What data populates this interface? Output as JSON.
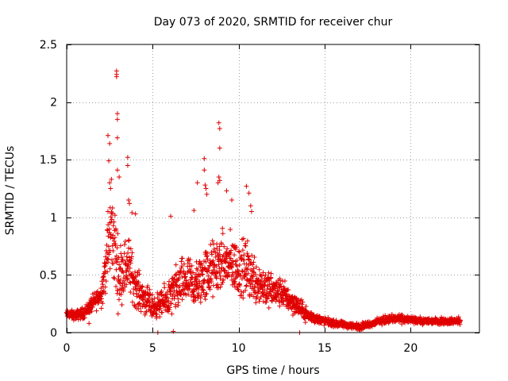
{
  "chart_data": {
    "type": "scatter",
    "title": "Day 073 of 2020, SRMTID for receiver chur",
    "xlabel": "GPS time / hours",
    "ylabel": "SRMTID / TECUs",
    "xlim": [
      0,
      24
    ],
    "ylim": [
      0,
      2.5
    ],
    "x_ticks": [
      0,
      5,
      10,
      15,
      20
    ],
    "y_ticks": [
      0,
      0.5,
      1,
      1.5,
      2,
      2.5
    ],
    "x_tick_labels": [
      "0",
      "5",
      "10",
      "15",
      "20"
    ],
    "y_tick_labels": [
      "0",
      "0.5",
      "1",
      "1.5",
      "2",
      "2.5"
    ],
    "grid": true,
    "marker": "+",
    "series_color": "#e00000",
    "data_range_x": [
      0,
      22.9
    ],
    "envelope": {
      "x": [
        0,
        0.5,
        1,
        1.5,
        2,
        2.3,
        2.6,
        2.8,
        3.0,
        3.3,
        3.6,
        4,
        4.5,
        5,
        5.5,
        6,
        6.5,
        7,
        7.5,
        8,
        8.5,
        9,
        9.5,
        10,
        10.5,
        11,
        11.5,
        12,
        12.5,
        13,
        13.5,
        14,
        14.5,
        15,
        15.5,
        16,
        16.5,
        17,
        17.5,
        18,
        18.5,
        19,
        19.5,
        20,
        20.5,
        21,
        21.5,
        22,
        22.9
      ],
      "center": [
        0.16,
        0.15,
        0.17,
        0.25,
        0.33,
        0.6,
        0.9,
        0.75,
        0.5,
        0.55,
        0.6,
        0.4,
        0.3,
        0.22,
        0.25,
        0.3,
        0.4,
        0.45,
        0.4,
        0.5,
        0.55,
        0.6,
        0.6,
        0.55,
        0.55,
        0.45,
        0.4,
        0.35,
        0.35,
        0.28,
        0.22,
        0.15,
        0.12,
        0.1,
        0.08,
        0.07,
        0.06,
        0.05,
        0.07,
        0.09,
        0.11,
        0.12,
        0.12,
        0.11,
        0.1,
        0.1,
        0.1,
        0.1,
        0.1
      ],
      "spread": [
        0.05,
        0.06,
        0.07,
        0.1,
        0.15,
        0.35,
        0.5,
        0.55,
        0.4,
        0.35,
        0.35,
        0.25,
        0.2,
        0.15,
        0.15,
        0.25,
        0.3,
        0.3,
        0.3,
        0.35,
        0.35,
        0.35,
        0.35,
        0.35,
        0.35,
        0.3,
        0.25,
        0.2,
        0.18,
        0.15,
        0.12,
        0.08,
        0.06,
        0.05,
        0.04,
        0.04,
        0.04,
        0.04,
        0.04,
        0.04,
        0.05,
        0.05,
        0.05,
        0.04,
        0.04,
        0.04,
        0.04,
        0.04,
        0.04
      ]
    },
    "points": [
      [
        2.9,
        2.27
      ],
      [
        2.9,
        2.24
      ],
      [
        2.9,
        2.22
      ],
      [
        2.95,
        1.9
      ],
      [
        2.95,
        1.85
      ],
      [
        2.95,
        1.69
      ],
      [
        2.4,
        1.71
      ],
      [
        2.5,
        1.64
      ],
      [
        2.45,
        1.49
      ],
      [
        2.5,
        1.3
      ],
      [
        2.55,
        1.25
      ],
      [
        2.6,
        1.33
      ],
      [
        2.95,
        1.41
      ],
      [
        3.05,
        1.35
      ],
      [
        3.55,
        1.52
      ],
      [
        3.55,
        1.45
      ],
      [
        3.6,
        1.15
      ],
      [
        3.65,
        1.12
      ],
      [
        8.85,
        1.82
      ],
      [
        8.9,
        1.77
      ],
      [
        8.9,
        1.6
      ],
      [
        8.85,
        1.35
      ],
      [
        8.9,
        1.32
      ],
      [
        8.8,
        1.3
      ],
      [
        8.0,
        1.51
      ],
      [
        8.0,
        1.41
      ],
      [
        8.05,
        1.28
      ],
      [
        8.1,
        1.25
      ],
      [
        8.15,
        1.2
      ],
      [
        7.6,
        1.3
      ],
      [
        10.45,
        1.27
      ],
      [
        10.6,
        1.21
      ],
      [
        9.6,
        1.15
      ],
      [
        9.3,
        1.23
      ],
      [
        10.7,
        1.1
      ],
      [
        10.75,
        1.05
      ],
      [
        6.05,
        1.01
      ],
      [
        7.4,
        1.06
      ],
      [
        4.0,
        1.03
      ],
      [
        3.8,
        1.04
      ],
      [
        2.4,
        1.05
      ],
      [
        5.3,
        0.0
      ],
      [
        13.55,
        0.0
      ],
      [
        6.2,
        0.01
      ],
      [
        1.3,
        0.08
      ]
    ]
  }
}
